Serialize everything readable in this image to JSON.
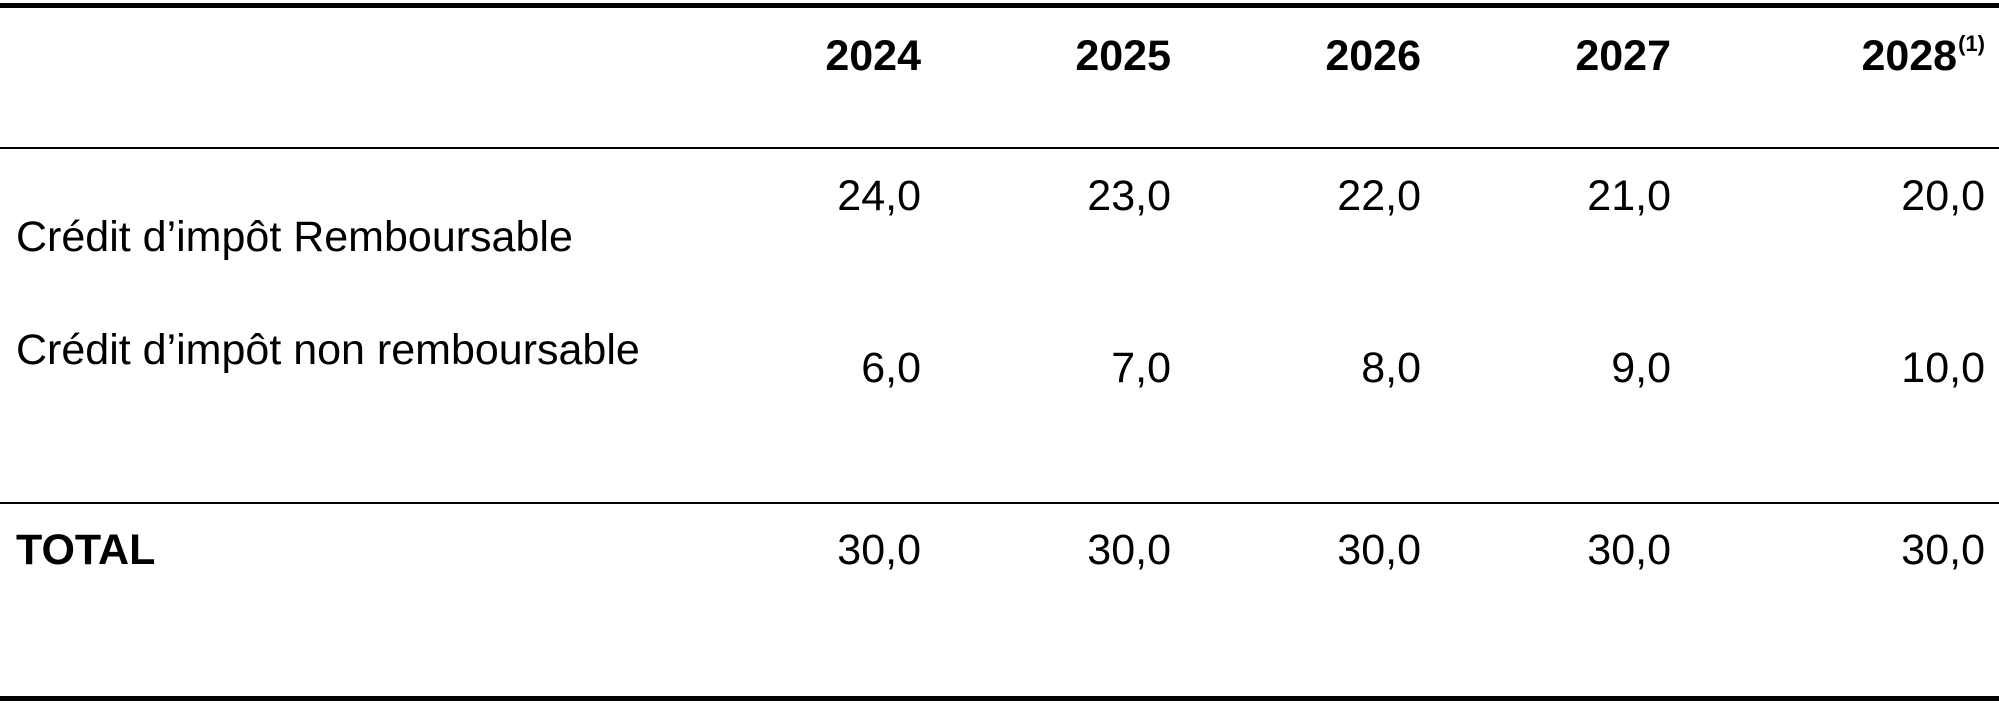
{
  "table": {
    "header": {
      "years": [
        "2024",
        "2025",
        "2026",
        "2027",
        "2028"
      ],
      "last_year_note": "(1)"
    },
    "rows": [
      {
        "label": "Crédit d’impôt Remboursable",
        "values": [
          "24,0",
          "23,0",
          "22,0",
          "21,0",
          "20,0"
        ]
      },
      {
        "label": "Crédit d’impôt non remboursable",
        "values": [
          "6,0",
          "7,0",
          "8,0",
          "9,0",
          "10,0"
        ]
      }
    ],
    "total": {
      "label": "TOTAL",
      "values": [
        "30,0",
        "30,0",
        "30,0",
        "30,0",
        "30,0"
      ]
    }
  }
}
